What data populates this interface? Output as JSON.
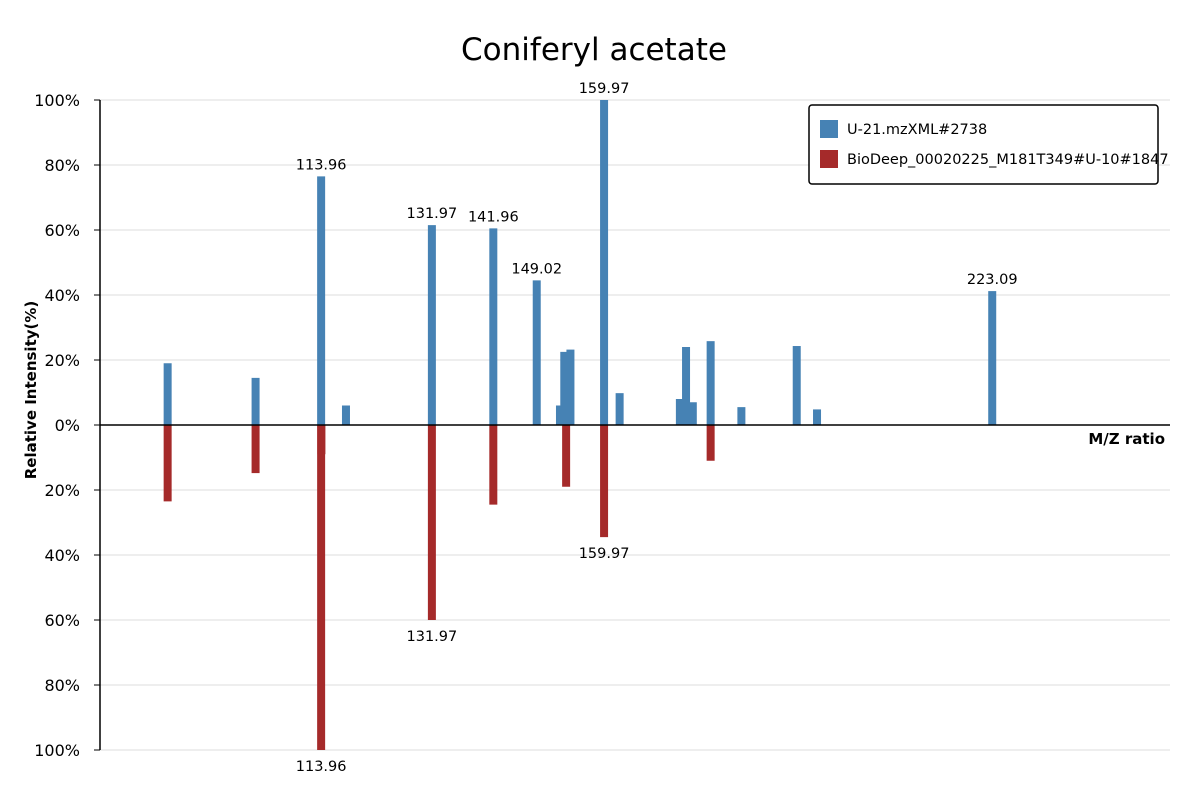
{
  "chart_data": {
    "type": "bar",
    "title": "Coniferyl acetate",
    "xlabel": "M/Z ratio",
    "ylabel": "Relative Intensity(%)",
    "y_tick_labels_top": [
      "100%",
      "80%",
      "60%",
      "40%",
      "20%",
      "0%"
    ],
    "y_tick_labels_bottom": [
      "20%",
      "40%",
      "60%",
      "80%",
      "100%"
    ],
    "ylim_top": [
      0,
      100
    ],
    "ylim_bottom": [
      0,
      100
    ],
    "xlim": [
      78,
      252
    ],
    "grid": true,
    "legend_position": "top-right",
    "colors": {
      "query": "#4682b4",
      "reference": "#a52a2a"
    },
    "series": [
      {
        "name": "U-21.mzXML#2738",
        "direction": "up",
        "peaks": [
          {
            "mz": 89.0,
            "value": 19
          },
          {
            "mz": 103.3,
            "value": 14.5
          },
          {
            "mz": 113.96,
            "value": 76.5,
            "label": "113.96"
          },
          {
            "mz": 118.0,
            "value": 6
          },
          {
            "mz": 131.97,
            "value": 61.5,
            "label": "131.97"
          },
          {
            "mz": 141.96,
            "value": 60.5,
            "label": "141.96"
          },
          {
            "mz": 149.02,
            "value": 44.5,
            "label": "149.02"
          },
          {
            "mz": 152.8,
            "value": 6
          },
          {
            "mz": 153.5,
            "value": 22.5
          },
          {
            "mz": 154.5,
            "value": 23.2
          },
          {
            "mz": 159.97,
            "value": 100,
            "label": "159.97"
          },
          {
            "mz": 162.5,
            "value": 9.8
          },
          {
            "mz": 172.3,
            "value": 8
          },
          {
            "mz": 173.3,
            "value": 24
          },
          {
            "mz": 174.4,
            "value": 7
          },
          {
            "mz": 177.3,
            "value": 25.8
          },
          {
            "mz": 182.3,
            "value": 5.5
          },
          {
            "mz": 191.3,
            "value": 24.3
          },
          {
            "mz": 194.6,
            "value": 4.8
          },
          {
            "mz": 223.09,
            "value": 41.2,
            "label": "223.09"
          }
        ]
      },
      {
        "name": "BioDeep_00020225_M181T349#U-10#1847",
        "direction": "down",
        "peaks": [
          {
            "mz": 89.0,
            "value": 23.5
          },
          {
            "mz": 103.3,
            "value": 14.8
          },
          {
            "mz": 114.0,
            "value": 9
          },
          {
            "mz": 113.96,
            "value": 100,
            "label": "113.96"
          },
          {
            "mz": 131.97,
            "value": 60,
            "label": "131.97"
          },
          {
            "mz": 141.96,
            "value": 24.5
          },
          {
            "mz": 153.8,
            "value": 19
          },
          {
            "mz": 159.97,
            "value": 34.5,
            "label": "159.97"
          },
          {
            "mz": 177.3,
            "value": 11
          }
        ]
      }
    ]
  }
}
